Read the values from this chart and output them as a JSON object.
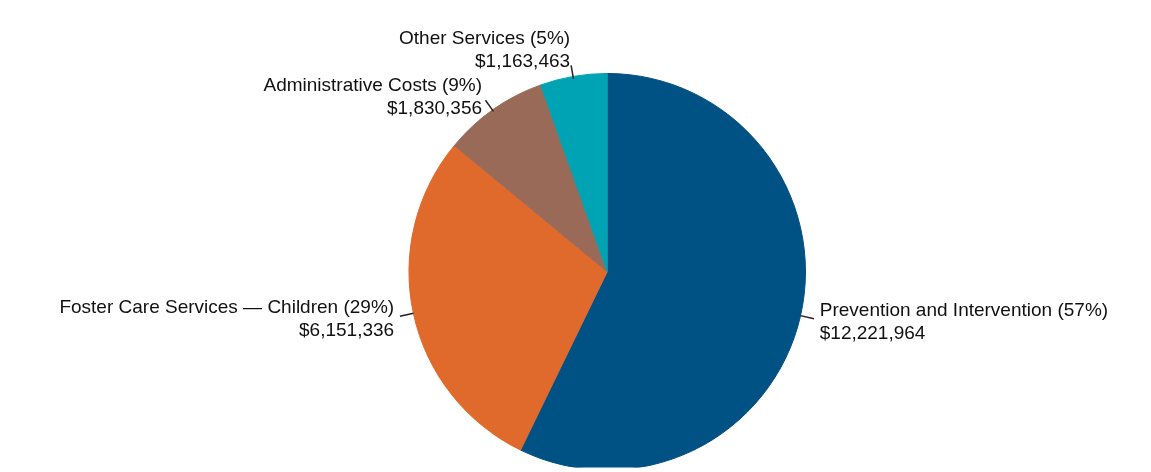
{
  "chart_data": {
    "type": "pie",
    "categories": [
      "Prevention and Intervention (57%)",
      "Foster Care Services — Children (29%)",
      "Administrative Costs (9%)",
      "Other Services (5%)"
    ],
    "values": [
      12221964,
      6151336,
      1830356,
      1163463
    ],
    "colors": [
      "#005284",
      "#e0692c",
      "#9a6a58",
      "#00a3b3"
    ],
    "value_labels": [
      "$12,221,964",
      "$6,151,336",
      "$1,830,356",
      "$1,163,463"
    ]
  }
}
